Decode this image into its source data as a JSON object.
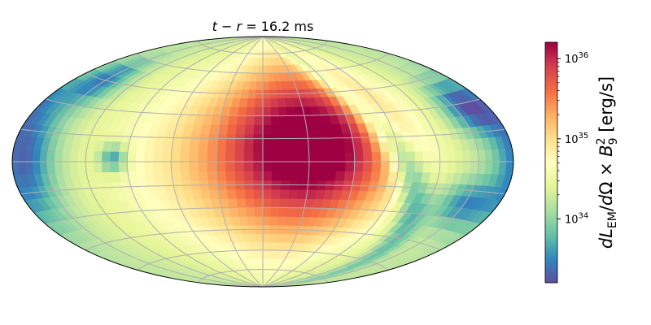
{
  "chart_data": {
    "type": "heatmap",
    "projection": "hammer-aitoff (all-sky map)",
    "title": "t − r = 16.2 ms",
    "grid": true,
    "colormap": "Spectral_r",
    "colorbar": {
      "label": "dL_EM/dΩ × B_9^2 [erg/s]",
      "scale": "log",
      "range": [
        1.6e+33,
        1.6e+36
      ],
      "ticks": [
        {
          "value": 1e+34,
          "label": "10^34"
        },
        {
          "value": 1e+35,
          "label": "10^35"
        },
        {
          "value": 1e+36,
          "label": "10^36"
        }
      ]
    },
    "features": [
      {
        "name": "bright lobe",
        "lon_deg": 35,
        "lat_deg": 12,
        "value": 6e+35
      },
      {
        "name": "warm rim",
        "lon_deg": -5,
        "lat_deg": 0,
        "value": 1.6e+35
      },
      {
        "name": "dark band",
        "lon_deg": 95,
        "lat_deg": 5,
        "value": 1.8e+33
      },
      {
        "name": "dark region west",
        "lon_deg": -170,
        "lat_deg": 2,
        "value": 1.8e+33
      },
      {
        "name": "dark patch north-east",
        "lon_deg": 160,
        "lat_deg": 28,
        "value": 1.8e+33
      },
      {
        "name": "dark spot",
        "lon_deg": -100,
        "lat_deg": 2,
        "value": 2e+33
      }
    ]
  }
}
